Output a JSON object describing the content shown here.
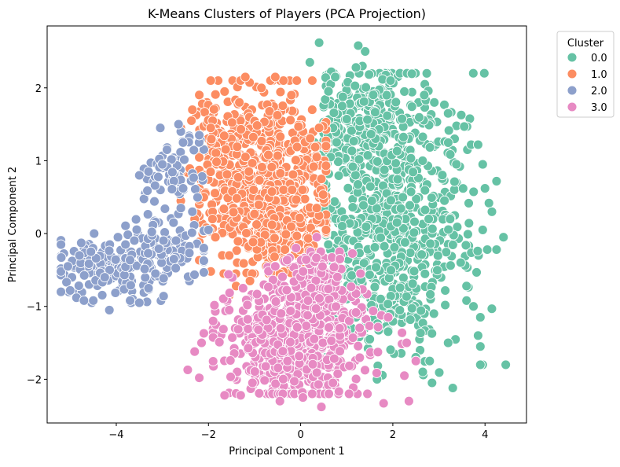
{
  "chart_data": {
    "type": "scatter",
    "title": "K-Means Clusters of Players (PCA Projection)",
    "xlabel": "Principal Component 1",
    "ylabel": "Principal Component 2",
    "xlim": [
      -5.5,
      4.9
    ],
    "ylim": [
      -2.6,
      2.85
    ],
    "x_ticks": [
      -4,
      -2,
      0,
      2,
      4
    ],
    "y_ticks": [
      -2,
      -1,
      0,
      1,
      2
    ],
    "x_tick_labels": [
      "−4",
      "−2",
      "0",
      "2",
      "4"
    ],
    "y_tick_labels": [
      "−2",
      "−1",
      "0",
      "1",
      "2"
    ],
    "grid": false,
    "legend": {
      "title": "Cluster",
      "placement": "outside-top-right",
      "entries": [
        "0.0",
        "1.0",
        "2.0",
        "3.0"
      ]
    },
    "series": [
      {
        "name": "0.0",
        "color": "#66c2a5",
        "points": [
          [
            0.4,
            2.62
          ],
          [
            0.2,
            2.35
          ],
          [
            1.4,
            2.5
          ],
          [
            1.25,
            2.58
          ],
          [
            1.2,
            2.28
          ],
          [
            0.75,
            2.15
          ],
          [
            1.95,
            2.1
          ],
          [
            2.25,
            1.95
          ],
          [
            2.9,
            1.8
          ],
          [
            3.2,
            1.65
          ],
          [
            3.55,
            1.47
          ],
          [
            3.7,
            1.22
          ],
          [
            3.85,
            1.22
          ],
          [
            3.95,
            0.95
          ],
          [
            4.0,
            0.62
          ],
          [
            4.25,
            0.72
          ],
          [
            4.15,
            0.3
          ],
          [
            4.4,
            -0.05
          ],
          [
            4.05,
            -0.22
          ],
          [
            4.25,
            -0.22
          ],
          [
            3.95,
            0.05
          ],
          [
            3.6,
            -0.72
          ],
          [
            3.6,
            -0.92
          ],
          [
            3.75,
            -1.0
          ],
          [
            3.9,
            -1.15
          ],
          [
            3.85,
            -1.4
          ],
          [
            3.9,
            -1.55
          ],
          [
            3.95,
            -1.8
          ],
          [
            3.9,
            -1.8
          ],
          [
            4.45,
            -1.8
          ],
          [
            3.3,
            -2.12
          ],
          [
            2.85,
            -2.05
          ],
          [
            2.65,
            -1.9
          ],
          [
            2.5,
            -1.75
          ],
          [
            1.5,
            -1.45
          ],
          [
            1.2,
            -1.15
          ],
          [
            1.0,
            -0.9
          ],
          [
            0.8,
            -0.5
          ],
          [
            0.6,
            -0.15
          ],
          [
            0.5,
            0.35
          ],
          [
            0.5,
            0.7
          ],
          [
            0.65,
            1.05
          ],
          [
            0.7,
            1.45
          ],
          [
            0.9,
            1.75
          ],
          [
            2.8,
            -1.75
          ],
          [
            3.2,
            -1.5
          ],
          [
            0.3,
            1.25
          ],
          [
            0.5,
            -0.5
          ]
        ],
        "clusters": [
          {
            "cx": 2.0,
            "cy": 0.55,
            "sx": 0.8,
            "sy": 0.85,
            "n": 560,
            "xmin": 0.55,
            "xmax": 4.2,
            "ymin": -1.7,
            "ymax": 2.2
          },
          {
            "cx": 1.8,
            "cy": -0.7,
            "sx": 0.65,
            "sy": 0.5,
            "n": 200,
            "xmin": 0.8,
            "xmax": 3.9,
            "ymin": -2.0,
            "ymax": 0.2
          },
          {
            "cx": 1.3,
            "cy": 1.6,
            "sx": 0.45,
            "sy": 0.35,
            "n": 140,
            "xmin": 0.5,
            "xmax": 2.6,
            "ymin": 0.8,
            "ymax": 2.3
          }
        ]
      },
      {
        "name": "1.0",
        "color": "#fc8d62",
        "points": [
          [
            -1.95,
            2.1
          ],
          [
            -1.2,
            2.15
          ],
          [
            -0.55,
            2.15
          ],
          [
            -1.65,
            1.95
          ],
          [
            -2.35,
            1.7
          ],
          [
            -2.6,
            1.45
          ],
          [
            -1.95,
            1.45
          ],
          [
            -3.05,
            0.98
          ],
          [
            -2.6,
            0.85
          ],
          [
            -2.1,
            0.5
          ],
          [
            -2.6,
            0.45
          ],
          [
            -2.3,
            0.2
          ],
          [
            -2.05,
            0.08
          ],
          [
            -1.85,
            -0.05
          ],
          [
            -1.55,
            -0.3
          ],
          [
            -1.95,
            -0.52
          ],
          [
            -1.55,
            -0.85
          ],
          [
            -1.4,
            -0.72
          ],
          [
            -1.05,
            -0.55
          ],
          [
            -0.45,
            -0.55
          ],
          [
            0.45,
            -0.3
          ],
          [
            0.55,
            0.05
          ],
          [
            0.35,
            0.35
          ],
          [
            0.45,
            0.75
          ],
          [
            0.35,
            1.05
          ],
          [
            0.4,
            1.45
          ],
          [
            0.25,
            1.7
          ],
          [
            -0.2,
            1.9
          ],
          [
            -0.85,
            2.0
          ],
          [
            -1.1,
            -0.65
          ]
        ],
        "clusters": [
          {
            "cx": -0.8,
            "cy": 0.85,
            "sx": 0.7,
            "sy": 0.65,
            "n": 560,
            "xmin": -2.2,
            "xmax": 0.55,
            "ymin": -0.55,
            "ymax": 2.1
          },
          {
            "cx": -0.5,
            "cy": 0.1,
            "sx": 0.5,
            "sy": 0.35,
            "n": 140,
            "xmin": -1.7,
            "xmax": 0.5,
            "ymin": -0.55,
            "ymax": 0.6
          },
          {
            "cx": -1.8,
            "cy": 1.1,
            "sx": 0.3,
            "sy": 0.4,
            "n": 80,
            "xmin": -2.5,
            "xmax": -1.1,
            "ymin": 0.2,
            "ymax": 1.8
          }
        ]
      },
      {
        "name": "2.0",
        "color": "#8da0cb",
        "points": [
          [
            -5.2,
            -0.8
          ],
          [
            -5.2,
            -0.52
          ],
          [
            -5.0,
            -0.78
          ],
          [
            -4.7,
            -0.92
          ],
          [
            -4.5,
            -0.92
          ],
          [
            -4.15,
            -1.05
          ],
          [
            -3.7,
            -0.92
          ],
          [
            -3.5,
            -0.95
          ],
          [
            -4.25,
            -0.6
          ],
          [
            -3.8,
            -0.15
          ],
          [
            -3.5,
            0.8
          ],
          [
            -3.3,
            0.85
          ],
          [
            -3.0,
            0.95
          ],
          [
            -2.9,
            1.15
          ],
          [
            -2.65,
            1.5
          ],
          [
            -2.55,
            1.25
          ],
          [
            -2.2,
            1.35
          ],
          [
            -2.55,
            0.62
          ],
          [
            -2.6,
            0.35
          ],
          [
            -2.35,
            0.3
          ],
          [
            -2.1,
            -0.2
          ],
          [
            -2.0,
            0.05
          ],
          [
            -2.75,
            -0.35
          ],
          [
            -3.15,
            -0.55
          ],
          [
            -3.3,
            -0.75
          ],
          [
            -4.8,
            -0.3
          ],
          [
            -5.05,
            -0.45
          ],
          [
            -4.55,
            -0.25
          ]
        ],
        "clusters": [
          {
            "cx": -4.1,
            "cy": -0.45,
            "sx": 0.55,
            "sy": 0.2,
            "n": 150,
            "xmin": -5.2,
            "xmax": -2.9,
            "ymin": -0.95,
            "ymax": 0.0
          },
          {
            "cx": -3.0,
            "cy": -0.2,
            "sx": 0.45,
            "sy": 0.2,
            "n": 90,
            "xmin": -3.8,
            "xmax": -2.1,
            "ymin": -0.7,
            "ymax": 0.3
          },
          {
            "cx": -2.75,
            "cy": 0.85,
            "sx": 0.3,
            "sy": 0.3,
            "n": 75,
            "xmin": -3.4,
            "xmax": -2.1,
            "ymin": 0.15,
            "ymax": 1.45
          }
        ]
      },
      {
        "name": "3.0",
        "color": "#e78ac3",
        "points": [
          [
            -2.1,
            -1.37
          ],
          [
            -2.15,
            -1.5
          ],
          [
            -2.3,
            -1.62
          ],
          [
            -2.45,
            -1.87
          ],
          [
            -2.2,
            -1.98
          ],
          [
            -1.65,
            -2.22
          ],
          [
            -1.3,
            -2.22
          ],
          [
            -0.45,
            -2.3
          ],
          [
            0.05,
            -2.25
          ],
          [
            0.45,
            -2.38
          ],
          [
            1.05,
            -2.2
          ],
          [
            1.45,
            -2.2
          ],
          [
            1.8,
            -2.33
          ],
          [
            2.35,
            -2.3
          ],
          [
            2.25,
            -1.95
          ],
          [
            2.3,
            -1.5
          ],
          [
            1.9,
            -1.15
          ],
          [
            1.3,
            -0.55
          ],
          [
            0.85,
            -0.35
          ],
          [
            0.35,
            -0.05
          ],
          [
            -0.1,
            -0.2
          ],
          [
            -0.55,
            -0.45
          ],
          [
            -1.25,
            -0.75
          ],
          [
            -1.55,
            -1.05
          ],
          [
            -1.9,
            -1.2
          ],
          [
            2.5,
            -1.75
          ],
          [
            0.7,
            -2.05
          ]
        ],
        "clusters": [
          {
            "cx": -0.1,
            "cy": -1.5,
            "sx": 0.8,
            "sy": 0.4,
            "n": 560,
            "xmin": -1.9,
            "xmax": 2.2,
            "ymin": -2.2,
            "ymax": -0.45
          },
          {
            "cx": 0.3,
            "cy": -0.75,
            "sx": 0.45,
            "sy": 0.25,
            "n": 150,
            "xmin": -0.7,
            "xmax": 1.2,
            "ymin": -1.3,
            "ymax": -0.25
          }
        ]
      }
    ]
  }
}
